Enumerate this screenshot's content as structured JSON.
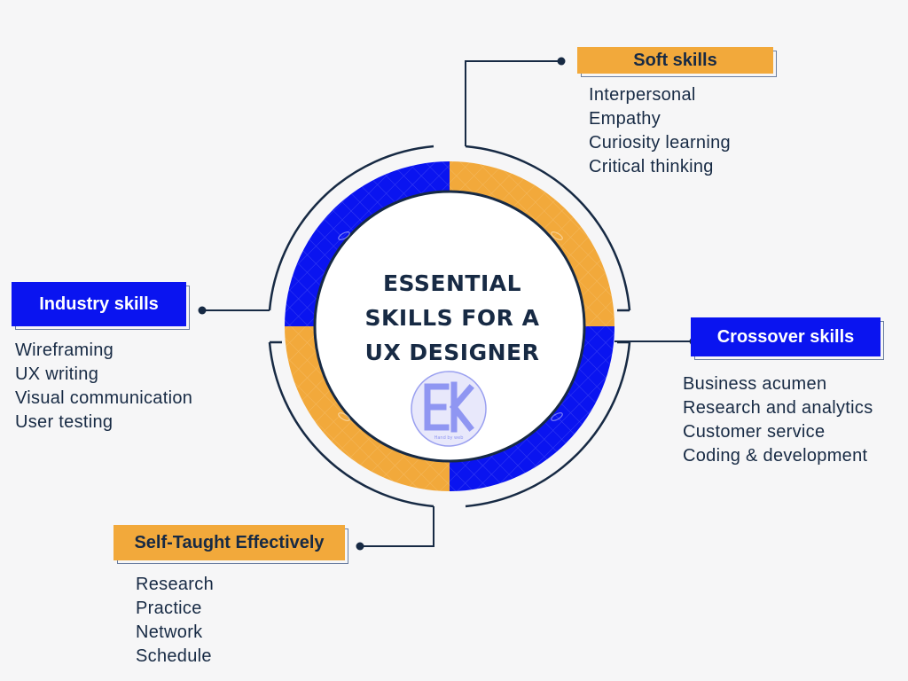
{
  "center": {
    "title_lines": [
      "ESSENTIAL",
      "SKILLS FOR A",
      "UX DESIGNER"
    ],
    "logo_text": "Hand by web"
  },
  "colors": {
    "orange": "#f2a93b",
    "blue": "#0a14f0",
    "navy": "#172a44",
    "background": "#f6f6f7"
  },
  "categories": {
    "soft": {
      "label": "Soft skills",
      "items": [
        "Interpersonal",
        "Empathy",
        "Curiosity learning",
        "Critical thinking"
      ]
    },
    "industry": {
      "label": "Industry skills",
      "items": [
        "Wireframing",
        "UX writing",
        "Visual communication",
        "User testing"
      ]
    },
    "crossover": {
      "label": "Crossover skills",
      "items": [
        "Business acumen",
        "Research and analytics",
        "Customer service",
        "Coding & development"
      ]
    },
    "self_taught": {
      "label": "Self-Taught Effectively",
      "items": [
        "Research",
        "Practice",
        "Network",
        "Schedule"
      ]
    }
  }
}
